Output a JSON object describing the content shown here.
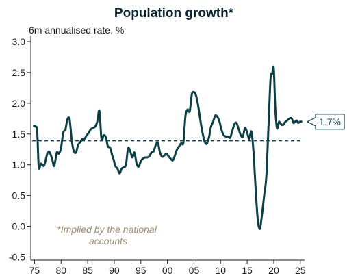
{
  "chart_data": {
    "type": "line",
    "title": "Population growth*",
    "subtitle": "6m annualised rate, %",
    "xlabel": "",
    "ylabel": "",
    "xlim": [
      1974.3,
      2025.8
    ],
    "ylim": [
      -0.55,
      3.1
    ],
    "x_ticks": [
      1975,
      1980,
      1985,
      1990,
      1995,
      2000,
      2005,
      2010,
      2015,
      2020,
      2025
    ],
    "x_tick_labels": [
      "75",
      "80",
      "85",
      "90",
      "95",
      "00",
      "05",
      "10",
      "15",
      "20",
      "25"
    ],
    "y_ticks": [
      -0.5,
      0.0,
      0.5,
      1.0,
      1.5,
      2.0,
      2.5,
      3.0
    ],
    "y_tick_labels": [
      "-0.5",
      "0.0",
      "0.5",
      "1.0",
      "1.5",
      "2.0",
      "2.5",
      "3.0"
    ],
    "grid": false,
    "legend": "none",
    "note": "*Implied by the national accounts",
    "average_line": {
      "value": 1.39,
      "style": "dashed"
    },
    "callout": {
      "label": "1.7%",
      "value": 1.7
    },
    "series_color": "#0d3f46",
    "series": [
      {
        "x": [
          1974.9,
          1975.2,
          1975.5,
          1975.8,
          1976.2,
          1976.7,
          1977.0,
          1977.4,
          1977.8,
          1978.3,
          1978.7,
          1979.2,
          1979.6,
          1980.0,
          1980.4,
          1980.8,
          1981.2,
          1981.6,
          1982.0,
          1982.4,
          1982.8,
          1983.2,
          1983.6,
          1984.0,
          1984.4,
          1984.8,
          1985.2,
          1985.6,
          1986.0,
          1986.4,
          1986.8,
          1987.2,
          1987.6,
          1988.0,
          1988.4,
          1988.8,
          1989.2,
          1989.6,
          1989.9,
          1990.2,
          1990.6,
          1991.0,
          1991.4,
          1991.8,
          1992.2,
          1992.6,
          1993.0,
          1993.4,
          1993.8,
          1994.2,
          1994.6,
          1995.0,
          1995.4,
          1995.8,
          1996.2,
          1996.6,
          1997.0,
          1997.4,
          1997.8,
          1998.2,
          1998.6,
          1999.0,
          1999.4,
          1999.8,
          2000.2,
          2000.6,
          2001.0,
          2001.4,
          2001.8,
          2002.2,
          2002.6,
          2003.0,
          2003.4,
          2003.8,
          2004.2,
          2004.6,
          2005.0,
          2005.4,
          2005.8,
          2006.2,
          2006.6,
          2007.0,
          2007.4,
          2007.8,
          2008.2,
          2008.6,
          2009.0,
          2009.4,
          2009.8,
          2010.2,
          2010.6,
          2011.0,
          2011.4,
          2011.8,
          2012.2,
          2012.6,
          2013.0,
          2013.4,
          2013.8,
          2014.2,
          2014.6,
          2015.0,
          2015.4,
          2015.8,
          2016.2,
          2016.6,
          2017.0,
          2017.4,
          2017.8,
          2018.2,
          2018.6,
          2019.0,
          2019.4,
          2019.7,
          2020.0,
          2020.3,
          2020.6,
          2020.8,
          2021.0,
          2021.2,
          2021.5,
          2021.8,
          2022.0,
          2022.2,
          2022.5,
          2022.8,
          2023.1,
          2023.4,
          2023.7,
          2024.0,
          2024.3,
          2024.6,
          2024.9,
          2025.2
        ],
        "y": [
          1.63,
          1.62,
          1.55,
          0.96,
          1.02,
          0.98,
          1.04,
          1.18,
          1.21,
          1.1,
          0.98,
          1.2,
          1.18,
          1.28,
          1.52,
          1.57,
          1.74,
          1.74,
          1.4,
          1.22,
          1.2,
          1.32,
          1.37,
          1.42,
          1.42,
          1.48,
          1.52,
          1.58,
          1.6,
          1.62,
          1.7,
          1.88,
          1.42,
          1.48,
          1.45,
          1.3,
          1.28,
          1.16,
          1.08,
          0.98,
          0.94,
          0.86,
          0.94,
          0.96,
          1.0,
          1.27,
          1.22,
          1.12,
          1.2,
          1.02,
          0.97,
          1.06,
          1.1,
          1.12,
          1.12,
          1.14,
          1.2,
          1.22,
          1.32,
          1.36,
          1.2,
          1.13,
          1.15,
          1.18,
          1.14,
          1.1,
          1.07,
          1.15,
          1.25,
          1.3,
          1.35,
          1.36,
          1.8,
          1.9,
          1.87,
          2.15,
          2.18,
          2.12,
          1.95,
          1.72,
          1.52,
          1.38,
          1.34,
          1.44,
          1.62,
          1.7,
          1.8,
          1.78,
          1.7,
          1.56,
          1.48,
          1.46,
          1.46,
          1.44,
          1.55,
          1.66,
          1.68,
          1.58,
          1.48,
          1.46,
          1.6,
          1.52,
          1.42,
          1.54,
          1.2,
          0.6,
          0.1,
          -0.04,
          0.2,
          0.5,
          0.8,
          1.6,
          2.4,
          2.48,
          2.57,
          1.9,
          1.6,
          1.64,
          1.7,
          1.68,
          1.65,
          1.65,
          1.68,
          1.7,
          1.72,
          1.74,
          1.76,
          1.75,
          1.68,
          1.7,
          1.72,
          1.68,
          1.7,
          1.7
        ]
      }
    ]
  }
}
